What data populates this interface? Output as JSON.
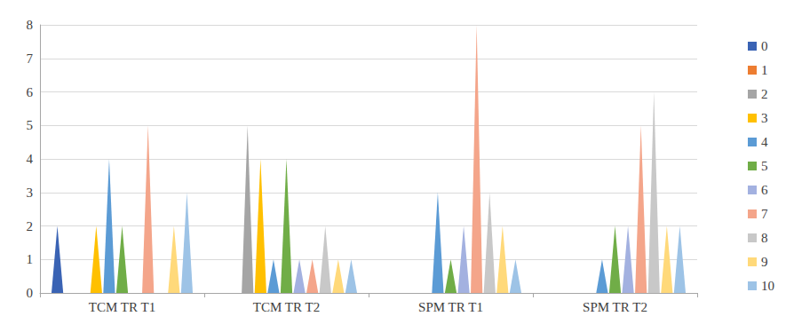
{
  "chart_data": {
    "type": "bar",
    "marker": "triangle",
    "categories": [
      "TCM TR T1",
      "TCM TR T2",
      "SPM TR T1",
      "SPM TR T2"
    ],
    "series": [
      {
        "name": "0",
        "color": "#3a63b4",
        "values": [
          2,
          0,
          0,
          0
        ]
      },
      {
        "name": "1",
        "color": "#ed7d31",
        "values": [
          0,
          0,
          0,
          0
        ]
      },
      {
        "name": "2",
        "color": "#a5a5a5",
        "values": [
          0,
          5,
          0,
          0
        ]
      },
      {
        "name": "3",
        "color": "#ffc000",
        "values": [
          2,
          4,
          0,
          0
        ]
      },
      {
        "name": "4",
        "color": "#5b9bd5",
        "values": [
          4,
          1,
          3,
          1
        ]
      },
      {
        "name": "5",
        "color": "#70ad47",
        "values": [
          2,
          4,
          1,
          2
        ]
      },
      {
        "name": "6",
        "color": "#a3b1e0",
        "values": [
          0,
          1,
          2,
          2
        ]
      },
      {
        "name": "7",
        "color": "#f4a58a",
        "values": [
          5,
          1,
          8,
          5
        ]
      },
      {
        "name": "8",
        "color": "#c8c8c8",
        "values": [
          0,
          2,
          3,
          6
        ]
      },
      {
        "name": "9",
        "color": "#ffd97a",
        "values": [
          2,
          1,
          2,
          2
        ]
      },
      {
        "name": "10",
        "color": "#9dc3e6",
        "values": [
          3,
          1,
          1,
          2
        ]
      }
    ],
    "ylim": [
      0,
      8
    ],
    "yticks": [
      0,
      1,
      2,
      3,
      4,
      5,
      6,
      7,
      8
    ],
    "grid": true,
    "legend": "right"
  }
}
